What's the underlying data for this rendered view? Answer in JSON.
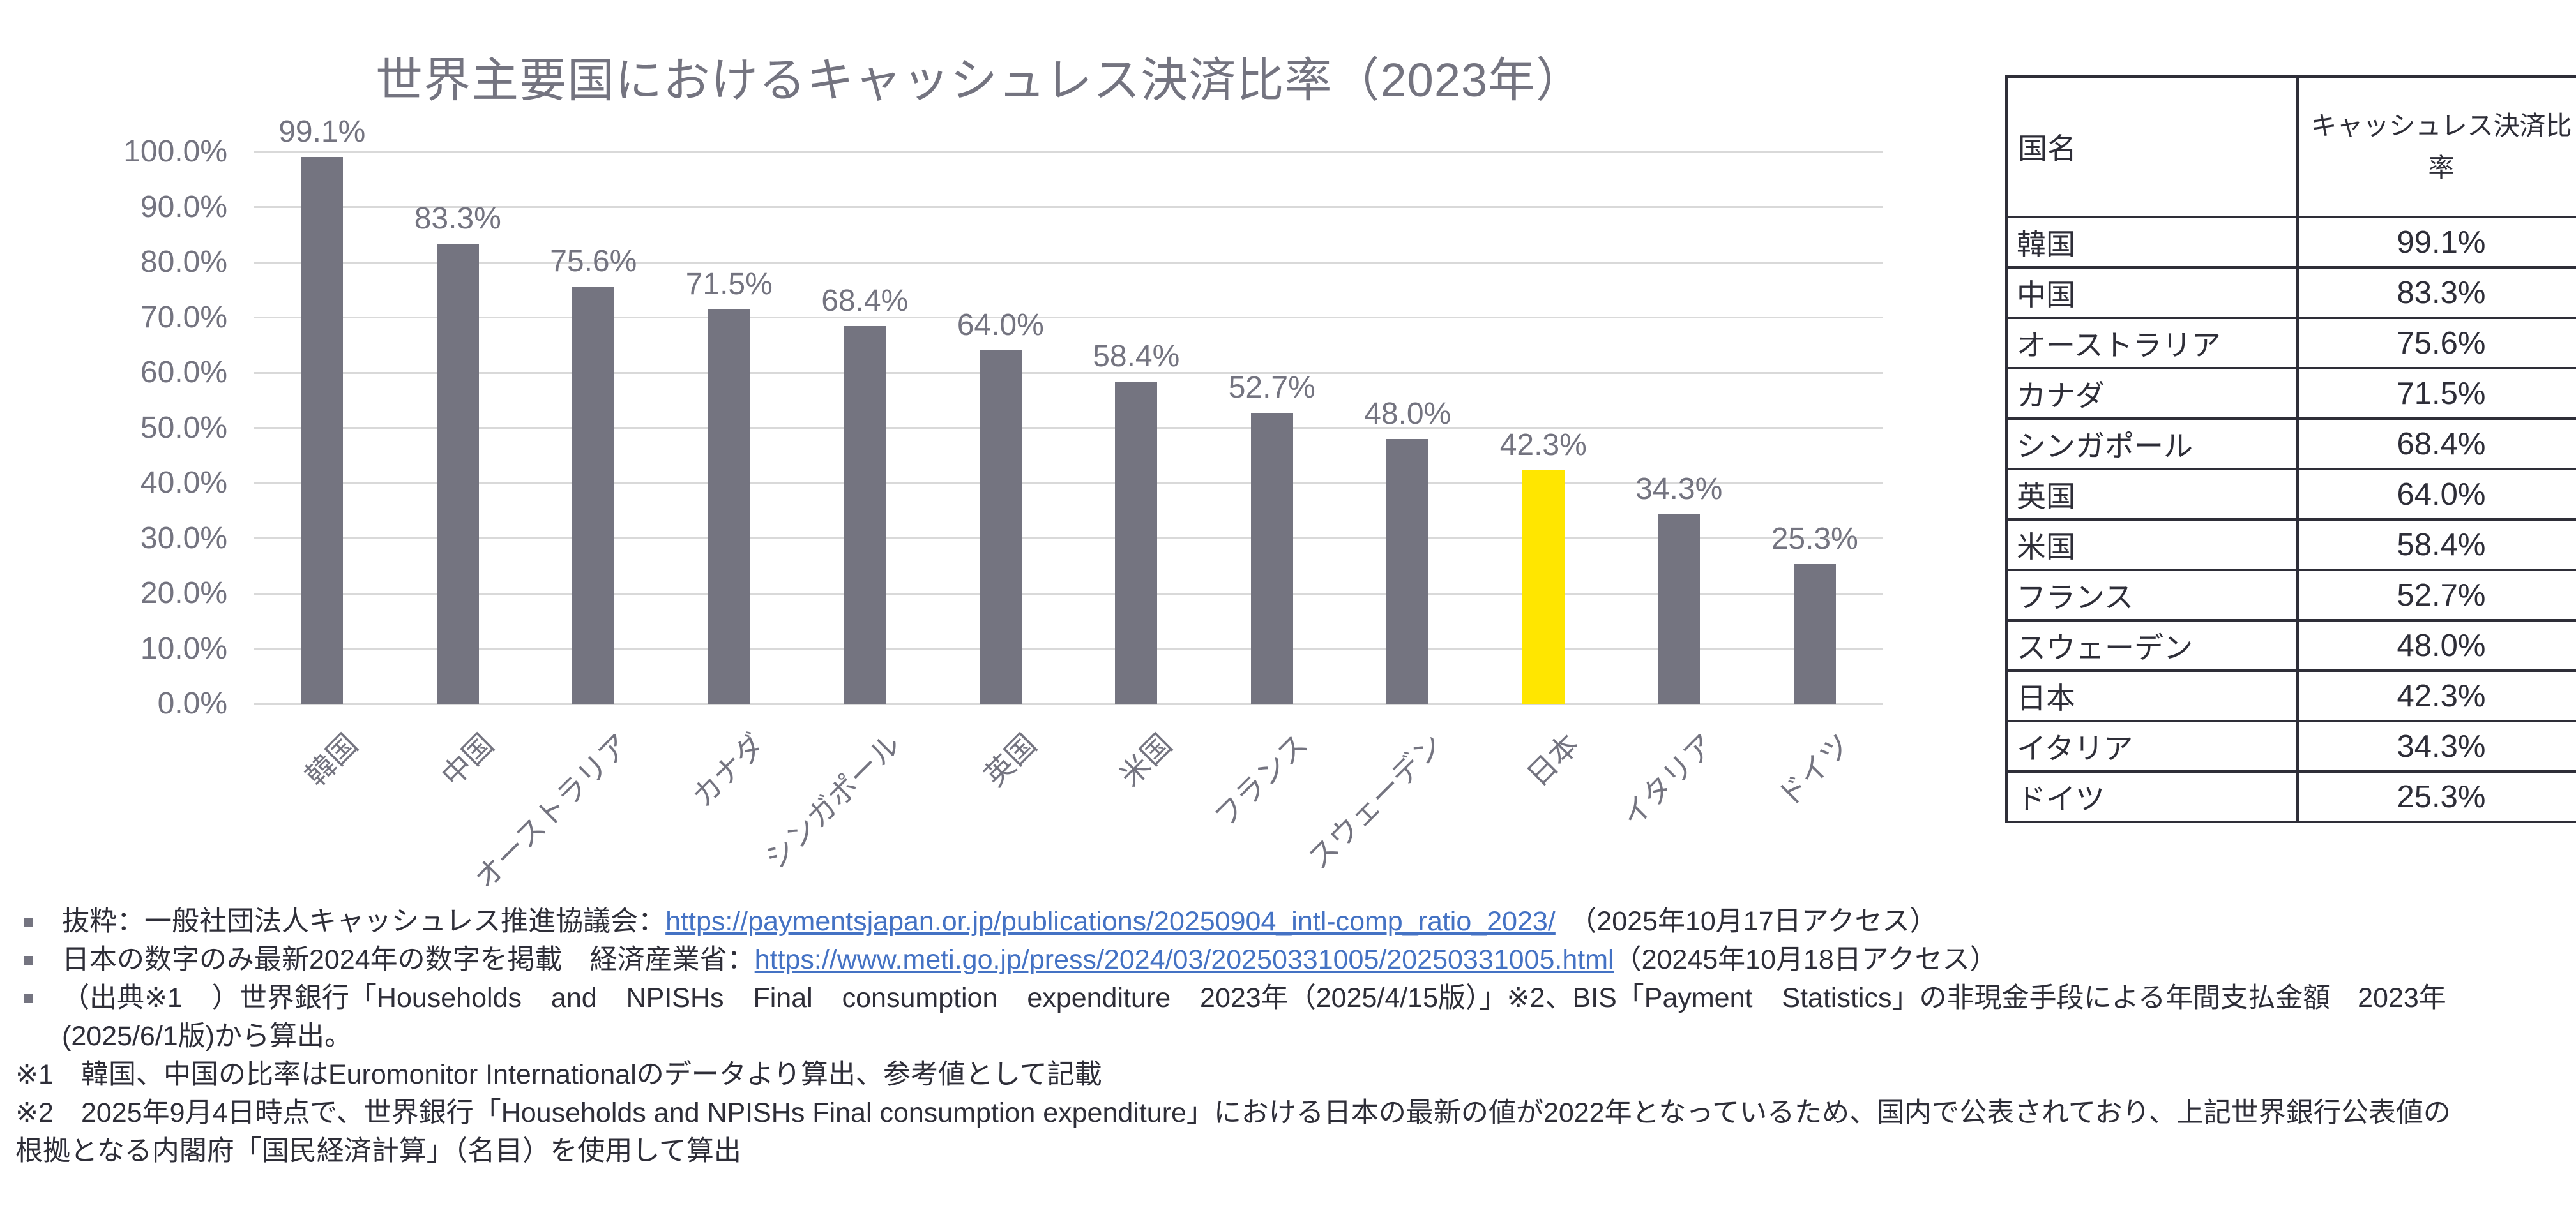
{
  "chart_data": {
    "type": "bar",
    "title": "世界主要国におけるキャッシュレス決済比率（2023年）",
    "categories": [
      "韓国",
      "中国",
      "オーストラリア",
      "カナダ",
      "シンガポール",
      "英国",
      "米国",
      "フランス",
      "スウェーデン",
      "日本",
      "イタリア",
      "ドイツ"
    ],
    "values": [
      99.1,
      83.3,
      75.6,
      71.5,
      68.4,
      64.0,
      58.4,
      52.7,
      48.0,
      42.3,
      34.3,
      25.3
    ],
    "data_labels": [
      "99.1%",
      "83.3%",
      "75.6%",
      "71.5%",
      "68.4%",
      "64.0%",
      "58.4%",
      "52.7%",
      "48.0%",
      "42.3%",
      "34.3%",
      "25.3%"
    ],
    "highlight_index": 9,
    "highlight_category": "日本",
    "xlabel": "",
    "ylabel": "",
    "ylim": [
      0,
      100
    ],
    "y_ticks": [
      "0.0%",
      "10.0%",
      "20.0%",
      "30.0%",
      "40.0%",
      "50.0%",
      "60.0%",
      "70.0%",
      "80.0%",
      "90.0%",
      "100.0%"
    ],
    "grid": true,
    "legend": false
  },
  "colors": {
    "bar_gray": "#747480",
    "bar_highlight_yellow": "#FFE600",
    "gridline": "#D9D9D9",
    "chart_text": "#747480",
    "dark_text": "#2E2E38",
    "link_blue": "#4472C4"
  },
  "table": {
    "headers": [
      "国名",
      "キャッシュレス決済比率"
    ],
    "rows": [
      [
        "韓国",
        "99.1%"
      ],
      [
        "中国",
        "83.3%"
      ],
      [
        "オーストラリア",
        "75.6%"
      ],
      [
        "カナダ",
        "71.5%"
      ],
      [
        "シンガポール",
        "68.4%"
      ],
      [
        "英国",
        "64.0%"
      ],
      [
        "米国",
        "58.4%"
      ],
      [
        "フランス",
        "52.7%"
      ],
      [
        "スウェーデン",
        "48.0%"
      ],
      [
        "日本",
        "42.3%"
      ],
      [
        "イタリア",
        "34.3%"
      ],
      [
        "ドイツ",
        "25.3%"
      ]
    ]
  },
  "footnotes": {
    "lines": [
      {
        "type": "bullet",
        "stretch": false,
        "segments": [
          {
            "text": "抜粋：一般社団法人キャッシュレス推進協議会：",
            "link": false
          },
          {
            "text": "https://paymentsjapan.or.jp/publications/20250904_intl-comp_ratio_2023/",
            "link": true
          },
          {
            "text": "　（2025年10月17日アクセス）",
            "link": false
          }
        ]
      },
      {
        "type": "bullet",
        "stretch": false,
        "segments": [
          {
            "text": "日本の数字のみ最新2024年の数字を掲載　経済産業省：",
            "link": false
          },
          {
            "text": "https://www.meti.go.jp/press/2024/03/20250331005/20250331005.html",
            "link": true
          },
          {
            "text": "（20245年10月18日アクセス）",
            "link": false
          }
        ]
      },
      {
        "type": "bullet",
        "stretch": true,
        "segments": [
          {
            "text": "（出典※1 ）世界銀行「Households and NPISHs Final consumption expenditure 2023年（2025/4/15版）」※2、BIS「Payment Statistics」の非現金手段による年間支払金額　2023年",
            "link": false
          }
        ]
      },
      {
        "type": "continuation",
        "stretch": false,
        "segments": [
          {
            "text": "(2025/6/1版)から算出。",
            "link": false
          }
        ]
      },
      {
        "type": "note",
        "stretch": false,
        "segments": [
          {
            "text": "※1　韓国、中国の比率はEuromonitor Internationalのデータより算出、参考値として記載",
            "link": false
          }
        ]
      },
      {
        "type": "note",
        "stretch": false,
        "segments": [
          {
            "text": "※2　2025年9月4日時点で、世界銀行「Households and NPISHs Final consumption expenditure」における日本の最新の値が2022年となっているため、国内で公表されており、上記世界銀行公表値の",
            "link": false
          }
        ]
      },
      {
        "type": "note",
        "stretch": false,
        "segments": [
          {
            "text": "根拠となる内閣府「国民経済計算」（名目）を使用して算出",
            "link": false
          }
        ]
      }
    ]
  }
}
